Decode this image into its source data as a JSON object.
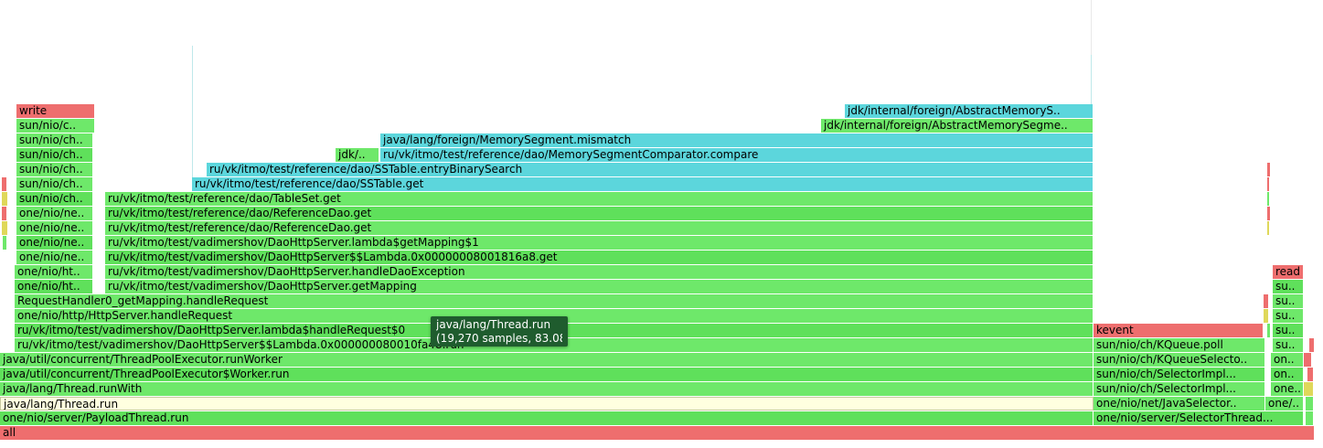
{
  "colors": {
    "green": "#6ee86a",
    "green_alt": "#5fe05b",
    "cyan": "#5cd6dc",
    "red": "#ee6e6e",
    "yellow": "#dfd85a",
    "highlight": "#ffffe0",
    "tooltip_bg": "#1f5c2e"
  },
  "frames": [
    {
      "text": "all",
      "c": "red"
    },
    {
      "text": "one/nio/server/PayloadThread.run",
      "c": "green"
    },
    {
      "text": "java/lang/Thread.run",
      "c": "highlight"
    },
    {
      "text": "java/lang/Thread.runWith",
      "c": "green"
    },
    {
      "text": "java/util/concurrent/ThreadPoolExecutor$Worker.run",
      "c": "green"
    },
    {
      "text": "java/util/concurrent/ThreadPoolExecutor.runWorker",
      "c": "green"
    },
    {
      "text": "ru/vk/itmo/test/vadimershov/DaoHttpServer$$Lambda.0x000000080010fa48.run",
      "c": "green"
    },
    {
      "text": "ru/vk/itmo/test/vadimershov/DaoHttpServer.lambda$handleRequest$0",
      "c": "green"
    },
    {
      "text": "one/nio/http/HttpServer.handleRequest",
      "c": "green"
    },
    {
      "text": "RequestHandler0_getMapping.handleRequest",
      "c": "green"
    },
    {
      "text": "one/nio/ht..",
      "c": "green"
    },
    {
      "text": "one/nio/ht..",
      "c": "green"
    },
    {
      "text": "one/nio/ne..",
      "c": "green"
    },
    {
      "text": "one/nio/ne..",
      "c": "green"
    },
    {
      "text": "one/nio/ne..",
      "c": "green"
    },
    {
      "text": "one/nio/ne..",
      "c": "green"
    },
    {
      "text": "sun/nio/ch..",
      "c": "green"
    },
    {
      "text": "sun/nio/ch..",
      "c": "green"
    },
    {
      "text": "sun/nio/ch..",
      "c": "green"
    },
    {
      "text": "sun/nio/ch..",
      "c": "green"
    },
    {
      "text": "sun/nio/ch..",
      "c": "green"
    },
    {
      "text": "sun/nio/c..",
      "c": "green"
    },
    {
      "text": "write",
      "c": "red"
    },
    {
      "text": "ru/vk/itmo/test/vadimershov/DaoHttpServer.getMapping",
      "c": "green"
    },
    {
      "text": "ru/vk/itmo/test/vadimershov/DaoHttpServer.handleDaoException",
      "c": "green"
    },
    {
      "text": "ru/vk/itmo/test/vadimershov/DaoHttpServer$$Lambda.0x00000008001816a8.get",
      "c": "green"
    },
    {
      "text": "ru/vk/itmo/test/vadimershov/DaoHttpServer.lambda$getMapping$1",
      "c": "green"
    },
    {
      "text": "ru/vk/itmo/test/reference/dao/ReferenceDao.get",
      "c": "green"
    },
    {
      "text": "ru/vk/itmo/test/reference/dao/ReferenceDao.get",
      "c": "green"
    },
    {
      "text": "ru/vk/itmo/test/reference/dao/TableSet.get",
      "c": "green"
    },
    {
      "text": "ru/vk/itmo/test/reference/dao/SSTable.get",
      "c": "cyan"
    },
    {
      "text": "ru/vk/itmo/test/reference/dao/SSTable.entryBinarySearch",
      "c": "cyan"
    },
    {
      "text": "jdk/..",
      "c": "green"
    },
    {
      "text": "ru/vk/itmo/test/reference/dao/MemorySegmentComparator.compare",
      "c": "cyan"
    },
    {
      "text": "java/lang/foreign/MemorySegment.mismatch",
      "c": "cyan"
    },
    {
      "text": "jdk/internal/foreign/AbstractMemorySegme..",
      "c": "green"
    },
    {
      "text": "jdk/internal/foreign/AbstractMemoryS..",
      "c": "cyan"
    },
    {
      "text": "one/nio/server/SelectorThread...",
      "c": "green"
    },
    {
      "text": "one/nio/net/JavaSelector..",
      "c": "green"
    },
    {
      "text": "sun/nio/ch/SelectorImpl...",
      "c": "green"
    },
    {
      "text": "sun/nio/ch/SelectorImpl...",
      "c": "green"
    },
    {
      "text": "sun/nio/ch/KQueueSelecto..",
      "c": "green"
    },
    {
      "text": "sun/nio/ch/KQueue.poll",
      "c": "green"
    },
    {
      "text": "kevent",
      "c": "red"
    },
    {
      "text": "one/..",
      "c": "green"
    },
    {
      "text": "one..",
      "c": "green"
    },
    {
      "text": "on..",
      "c": "green"
    },
    {
      "text": "on..",
      "c": "green"
    },
    {
      "text": "su..",
      "c": "green"
    },
    {
      "text": "su..",
      "c": "green"
    },
    {
      "text": "su..",
      "c": "green"
    },
    {
      "text": "su..",
      "c": "green"
    },
    {
      "text": "su..",
      "c": "green"
    },
    {
      "text": "read",
      "c": "red"
    }
  ],
  "tooltip": {
    "name": "java/lang/Thread.run",
    "detail": "(19,270 samples, 83.08%)"
  }
}
